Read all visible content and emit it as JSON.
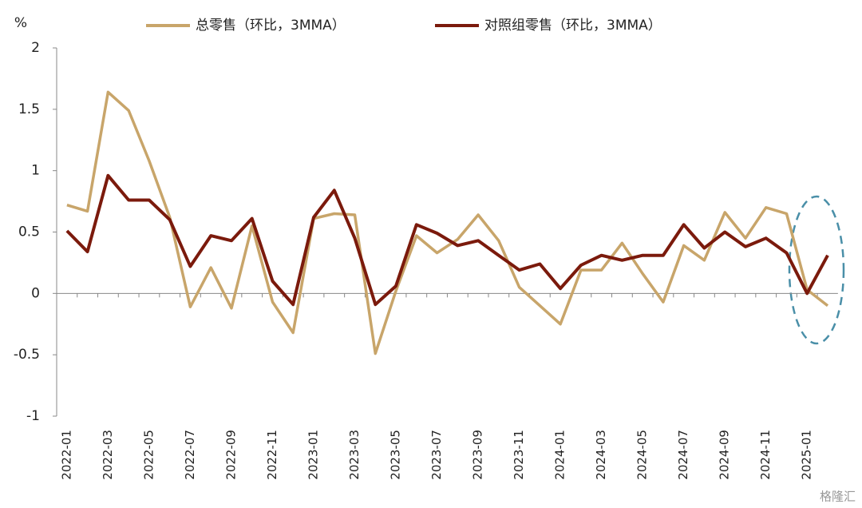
{
  "chart_data": {
    "type": "line",
    "ylabel": "%",
    "categories": [
      "2022-01",
      null,
      "2022-03",
      null,
      "2022-05",
      null,
      "2022-07",
      null,
      "2022-09",
      null,
      "2022-11",
      null,
      "2023-01",
      null,
      "2023-03",
      null,
      "2023-05",
      null,
      "2023-07",
      null,
      "2023-09",
      null,
      "2023-11",
      null,
      "2024-01",
      null,
      "2024-03",
      null,
      "2024-05",
      null,
      "2024-07",
      null,
      "2024-09",
      null,
      "2024-11",
      null,
      "2025-01",
      null
    ],
    "series": [
      {
        "name": "总零售（环比，3MMA）",
        "color": "#c8a56a",
        "values": [
          0.72,
          0.67,
          1.64,
          1.49,
          1.08,
          0.62,
          -0.11,
          0.21,
          -0.12,
          0.55,
          -0.07,
          -0.32,
          0.61,
          0.65,
          0.64,
          -0.49,
          0.02,
          0.47,
          0.33,
          0.44,
          0.64,
          0.43,
          0.05,
          -0.1,
          -0.25,
          0.19,
          0.19,
          0.41,
          0.16,
          -0.07,
          0.39,
          0.27,
          0.66,
          0.45,
          0.7,
          0.65,
          0.03,
          -0.1
        ]
      },
      {
        "name": "对照组零售（环比，3MMA）",
        "color": "#7b1a0c",
        "values": [
          0.51,
          0.34,
          0.96,
          0.76,
          0.76,
          0.6,
          0.22,
          0.47,
          0.43,
          0.61,
          0.1,
          -0.09,
          0.62,
          0.84,
          0.45,
          -0.09,
          0.06,
          0.56,
          0.49,
          0.39,
          0.43,
          0.31,
          0.19,
          0.24,
          0.04,
          0.23,
          0.31,
          0.27,
          0.31,
          0.31,
          0.56,
          0.37,
          0.5,
          0.38,
          0.45,
          0.33,
          0.0,
          0.31
        ]
      }
    ],
    "ylim": [
      -1,
      2
    ],
    "yticks": [
      2,
      1.5,
      1,
      0.5,
      0,
      -0.5,
      -1
    ],
    "legend": "top",
    "watermark": "格隆汇"
  }
}
